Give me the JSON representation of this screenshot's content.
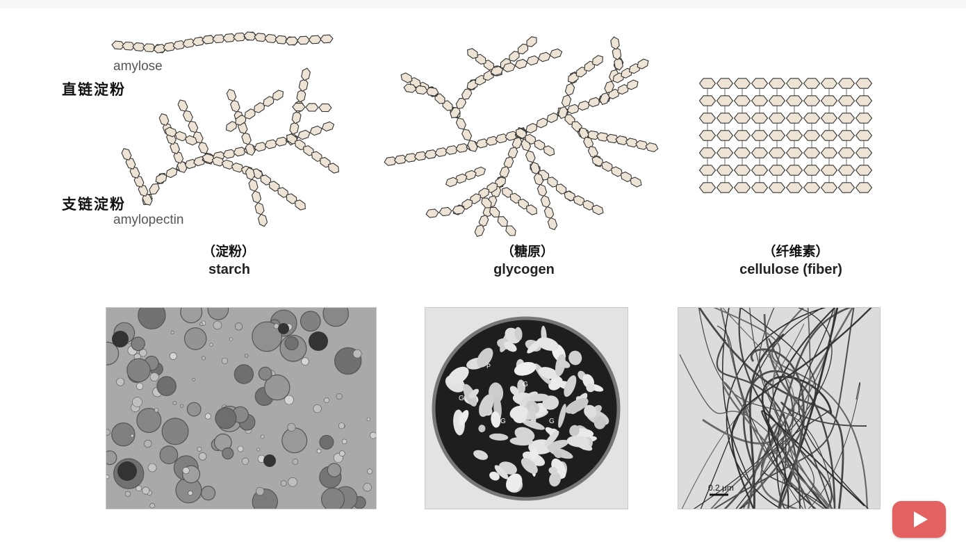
{
  "starch_panel": {
    "amylose_en": "amylose",
    "amylose_zh": "直链淀粉",
    "amylopectin_zh": "支链淀粉",
    "amylopectin_en": "amylopectin",
    "caption_zh": "（淀粉）",
    "caption_en": "starch"
  },
  "glycogen_panel": {
    "caption_zh": "（糖原）",
    "caption_en": "glycogen",
    "micrograph_labels": [
      "G",
      "G",
      "G",
      "G",
      "P"
    ]
  },
  "cellulose_panel": {
    "caption_zh": "（纤维素）",
    "caption_en": "cellulose (fiber)",
    "scale_bar": "0.2 μm"
  },
  "colors": {
    "hexagon_fill": "#eee4d6",
    "hexagon_stroke": "#333333",
    "play_button": "#e46161"
  },
  "icons": {
    "play": "play-icon"
  }
}
